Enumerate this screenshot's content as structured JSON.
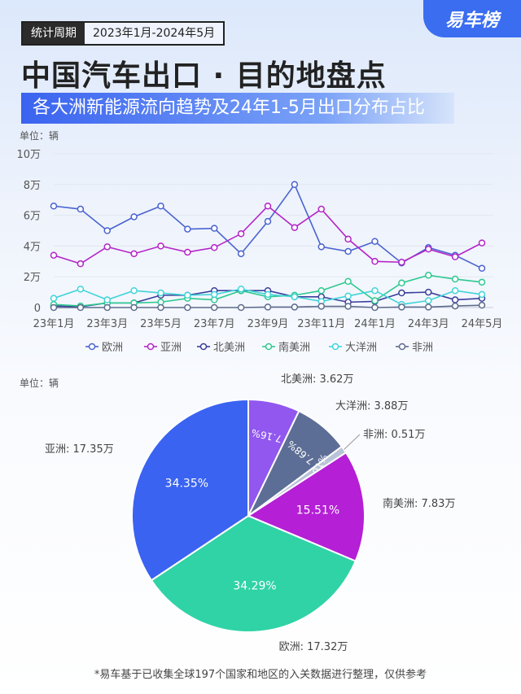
{
  "logo": "易车榜",
  "period": {
    "label": "统计周期",
    "value": "2023年1月-2024年5月"
  },
  "title": "中国汽车出口 · 目的地盘点",
  "subtitle": "各大洲新能源流向趋势及24年1-5月出口分布占比",
  "footnote": "*易车基于已收集全球197个国家和地区的入关数据进行整理，仅供参考",
  "chart_data": [
    {
      "type": "line",
      "unit_label": "单位：辆",
      "ylim": [
        0,
        100000
      ],
      "y_ticks": [
        "0",
        "2万",
        "4万",
        "6万",
        "8万",
        "10万"
      ],
      "x": [
        "23年1月",
        "23年2月",
        "23年3月",
        "23年4月",
        "23年5月",
        "23年6月",
        "23年7月",
        "23年8月",
        "23年9月",
        "23年10月",
        "23年11月",
        "23年12月",
        "24年1月",
        "24年2月",
        "24年3月",
        "24年4月",
        "24年5月"
      ],
      "x_tick_labels": [
        "23年1月",
        "23年3月",
        "23年5月",
        "23年7月",
        "23年9月",
        "23年11月",
        "24年1月",
        "24年3月",
        "24年5月"
      ],
      "grid": true,
      "legend": "bottom",
      "series": [
        {
          "name": "欧洲",
          "color": "#4a63d0",
          "values": [
            66000,
            64000,
            50000,
            59000,
            66000,
            51000,
            51500,
            35000,
            56000,
            80000,
            39500,
            36500,
            43000,
            29000,
            39000,
            34000,
            25500
          ]
        },
        {
          "name": "亚洲",
          "color": "#b424c8",
          "values": [
            34000,
            28500,
            39500,
            35000,
            40000,
            36000,
            39000,
            48000,
            66000,
            52000,
            64000,
            44500,
            30000,
            29500,
            38000,
            33000,
            42000
          ]
        },
        {
          "name": "北美洲",
          "color": "#3b3f9a",
          "values": [
            1000,
            500,
            3000,
            3000,
            8000,
            8000,
            11000,
            11000,
            11000,
            7000,
            7000,
            3500,
            4000,
            9500,
            10000,
            5000,
            6000
          ]
        },
        {
          "name": "南美洲",
          "color": "#2ec98f",
          "values": [
            2000,
            1000,
            3000,
            3000,
            3500,
            6000,
            5000,
            11000,
            7000,
            8000,
            11000,
            17000,
            4500,
            16000,
            21000,
            18500,
            16500
          ]
        },
        {
          "name": "大洋洲",
          "color": "#40d4d8",
          "values": [
            6000,
            12000,
            5000,
            11000,
            9500,
            8000,
            8500,
            12000,
            8500,
            7000,
            4000,
            7500,
            11000,
            2000,
            4500,
            11000,
            8500
          ]
        },
        {
          "name": "非洲",
          "color": "#5d6b8c",
          "values": [
            0,
            0,
            0,
            0,
            0,
            0,
            0,
            0,
            300,
            300,
            800,
            800,
            0,
            300,
            300,
            1000,
            1500
          ]
        }
      ]
    },
    {
      "type": "pie",
      "unit_label": "单位：辆",
      "slices": [
        {
          "name": "北美洲",
          "value_label": "3.62万",
          "value": 36200,
          "pct": "7.16%",
          "color": "#9157ef"
        },
        {
          "name": "大洋洲",
          "value_label": "3.88万",
          "value": 38800,
          "pct": "7.68%",
          "color": "#5d6e96"
        },
        {
          "name": "非洲",
          "value_label": "0.51万",
          "value": 5100,
          "pct": "1.01%",
          "color": "#b9c4d8"
        },
        {
          "name": "南美洲",
          "value_label": "7.83万",
          "value": 78300,
          "pct": "15.51%",
          "color": "#b51fd6"
        },
        {
          "name": "欧洲",
          "value_label": "17.32万",
          "value": 173200,
          "pct": "34.29%",
          "color": "#2fd3a6"
        },
        {
          "name": "亚洲",
          "value_label": "17.35万",
          "value": 173500,
          "pct": "34.35%",
          "color": "#3a63f2"
        }
      ]
    }
  ]
}
